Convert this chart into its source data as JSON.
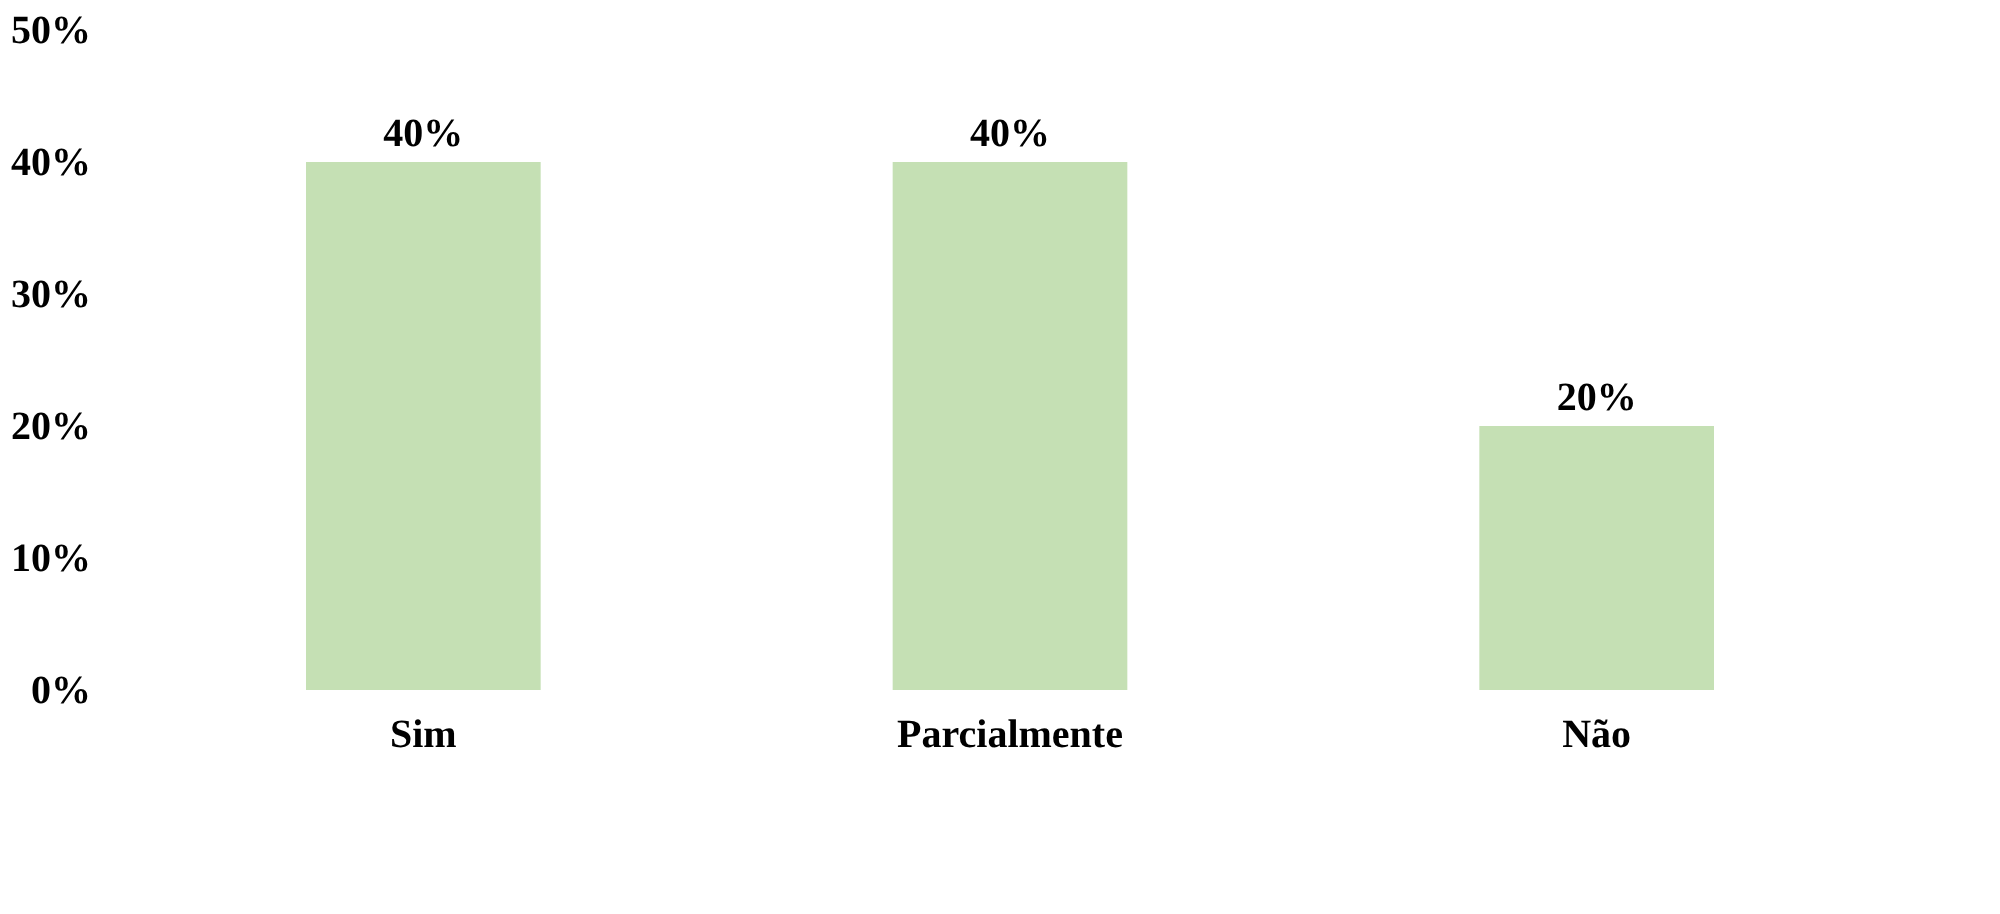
{
  "chart_data": {
    "type": "bar",
    "categories": [
      "Sim",
      "Parcialmente",
      "Não"
    ],
    "values": [
      40,
      40,
      20
    ],
    "color": "#c5e0b4",
    "value_labels": [
      "40%",
      "40%",
      "20%"
    ],
    "ylim": [
      0,
      50
    ],
    "yticks": [
      {
        "value": 0,
        "label": "0%"
      },
      {
        "value": 10,
        "label": "10%"
      },
      {
        "value": 20,
        "label": "20%"
      },
      {
        "value": 30,
        "label": "30%"
      },
      {
        "value": 40,
        "label": "40%"
      },
      {
        "value": 50,
        "label": "50%"
      }
    ],
    "grid": false
  }
}
